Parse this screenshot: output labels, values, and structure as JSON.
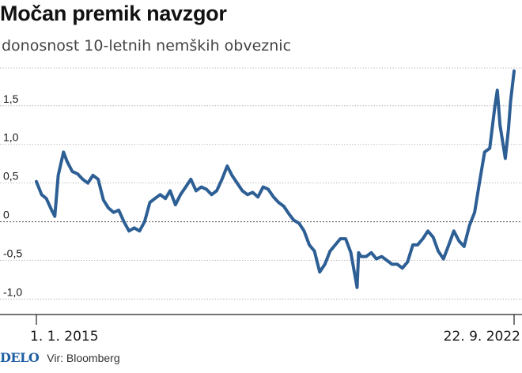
{
  "header": {
    "title": "Močan premik navzgor",
    "subtitle": "donosnost 10-letnih nemških obveznic"
  },
  "footer": {
    "logo": "DELO",
    "source": "Vir: Bloomberg"
  },
  "colors": {
    "line": "#2d5f95",
    "grid": "#999999",
    "text": "#1a1a1a",
    "logo": "#1f5fa3"
  },
  "chart_data": {
    "type": "line",
    "title": "Močan premik navzgor",
    "subtitle": "donosnost 10-letnih nemških obveznic",
    "xlabel": "",
    "ylabel": "",
    "x_start": "1. 1. 2015",
    "x_end": "22. 9. 2022",
    "x_tick_labels": [
      "1. 1. 2015",
      "22. 9. 2022"
    ],
    "ylim": [
      -1.2,
      2.05
    ],
    "y_ticks": [
      -1.0,
      -0.5,
      0,
      0.5,
      1.0,
      1.5
    ],
    "y_tick_labels": [
      "-1,0",
      "-0,5",
      "0",
      "0,5",
      "1,0",
      "1,5"
    ],
    "grid": "horizontal dotted",
    "series": [
      {
        "x": [
          "2015-01-01",
          "2015-02-01",
          "2015-03-01",
          "2015-04-01",
          "2015-04-20",
          "2015-05-10",
          "2015-06-10",
          "2015-07-01",
          "2015-08-01",
          "2015-09-01",
          "2015-10-01",
          "2015-11-01",
          "2015-12-01",
          "2016-01-01",
          "2016-02-01",
          "2016-03-01",
          "2016-04-01",
          "2016-05-01",
          "2016-06-01",
          "2016-07-01",
          "2016-08-01",
          "2016-09-01",
          "2016-10-01",
          "2016-11-01",
          "2016-12-01",
          "2017-01-01",
          "2017-02-01",
          "2017-03-01",
          "2017-04-01",
          "2017-05-01",
          "2017-06-01",
          "2017-07-01",
          "2017-08-01",
          "2017-09-01",
          "2017-10-01",
          "2017-11-01",
          "2017-12-01",
          "2018-01-01",
          "2018-02-01",
          "2018-03-01",
          "2018-04-01",
          "2018-05-01",
          "2018-06-01",
          "2018-07-01",
          "2018-08-01",
          "2018-09-01",
          "2018-10-01",
          "2018-11-01",
          "2018-12-01",
          "2019-01-01",
          "2019-02-01",
          "2019-03-01",
          "2019-04-01",
          "2019-05-01",
          "2019-06-01",
          "2019-07-01",
          "2019-08-01",
          "2019-09-01",
          "2019-10-01",
          "2019-11-01",
          "2019-12-01",
          "2020-01-01",
          "2020-02-01",
          "2020-03-09",
          "2020-03-18",
          "2020-04-01",
          "2020-05-01",
          "2020-06-01",
          "2020-07-01",
          "2020-08-01",
          "2020-09-01",
          "2020-10-01",
          "2020-11-01",
          "2020-12-01",
          "2021-01-01",
          "2021-02-01",
          "2021-03-01",
          "2021-04-01",
          "2021-05-01",
          "2021-06-01",
          "2021-07-01",
          "2021-08-01",
          "2021-09-01",
          "2021-10-01",
          "2021-11-01",
          "2021-12-01",
          "2022-01-01",
          "2022-02-01",
          "2022-03-01",
          "2022-04-01",
          "2022-05-01",
          "2022-06-01",
          "2022-06-15",
          "2022-07-01",
          "2022-08-01",
          "2022-08-20",
          "2022-09-01",
          "2022-09-22"
        ],
        "values": [
          0.52,
          0.35,
          0.3,
          0.15,
          0.07,
          0.6,
          0.9,
          0.78,
          0.65,
          0.62,
          0.55,
          0.5,
          0.6,
          0.55,
          0.28,
          0.18,
          0.12,
          0.15,
          0.0,
          -0.12,
          -0.08,
          -0.12,
          0.0,
          0.25,
          0.3,
          0.35,
          0.3,
          0.4,
          0.22,
          0.35,
          0.45,
          0.55,
          0.4,
          0.45,
          0.42,
          0.35,
          0.4,
          0.55,
          0.72,
          0.6,
          0.5,
          0.4,
          0.35,
          0.38,
          0.32,
          0.45,
          0.42,
          0.32,
          0.25,
          0.2,
          0.1,
          0.02,
          -0.02,
          -0.12,
          -0.3,
          -0.38,
          -0.65,
          -0.55,
          -0.38,
          -0.3,
          -0.22,
          -0.22,
          -0.4,
          -0.85,
          -0.4,
          -0.45,
          -0.45,
          -0.4,
          -0.48,
          -0.45,
          -0.5,
          -0.55,
          -0.55,
          -0.6,
          -0.52,
          -0.3,
          -0.3,
          -0.22,
          -0.12,
          -0.2,
          -0.38,
          -0.48,
          -0.3,
          -0.12,
          -0.25,
          -0.32,
          -0.05,
          0.12,
          0.5,
          0.9,
          0.95,
          1.5,
          1.7,
          1.25,
          0.82,
          1.2,
          1.55,
          1.95
        ]
      }
    ]
  }
}
